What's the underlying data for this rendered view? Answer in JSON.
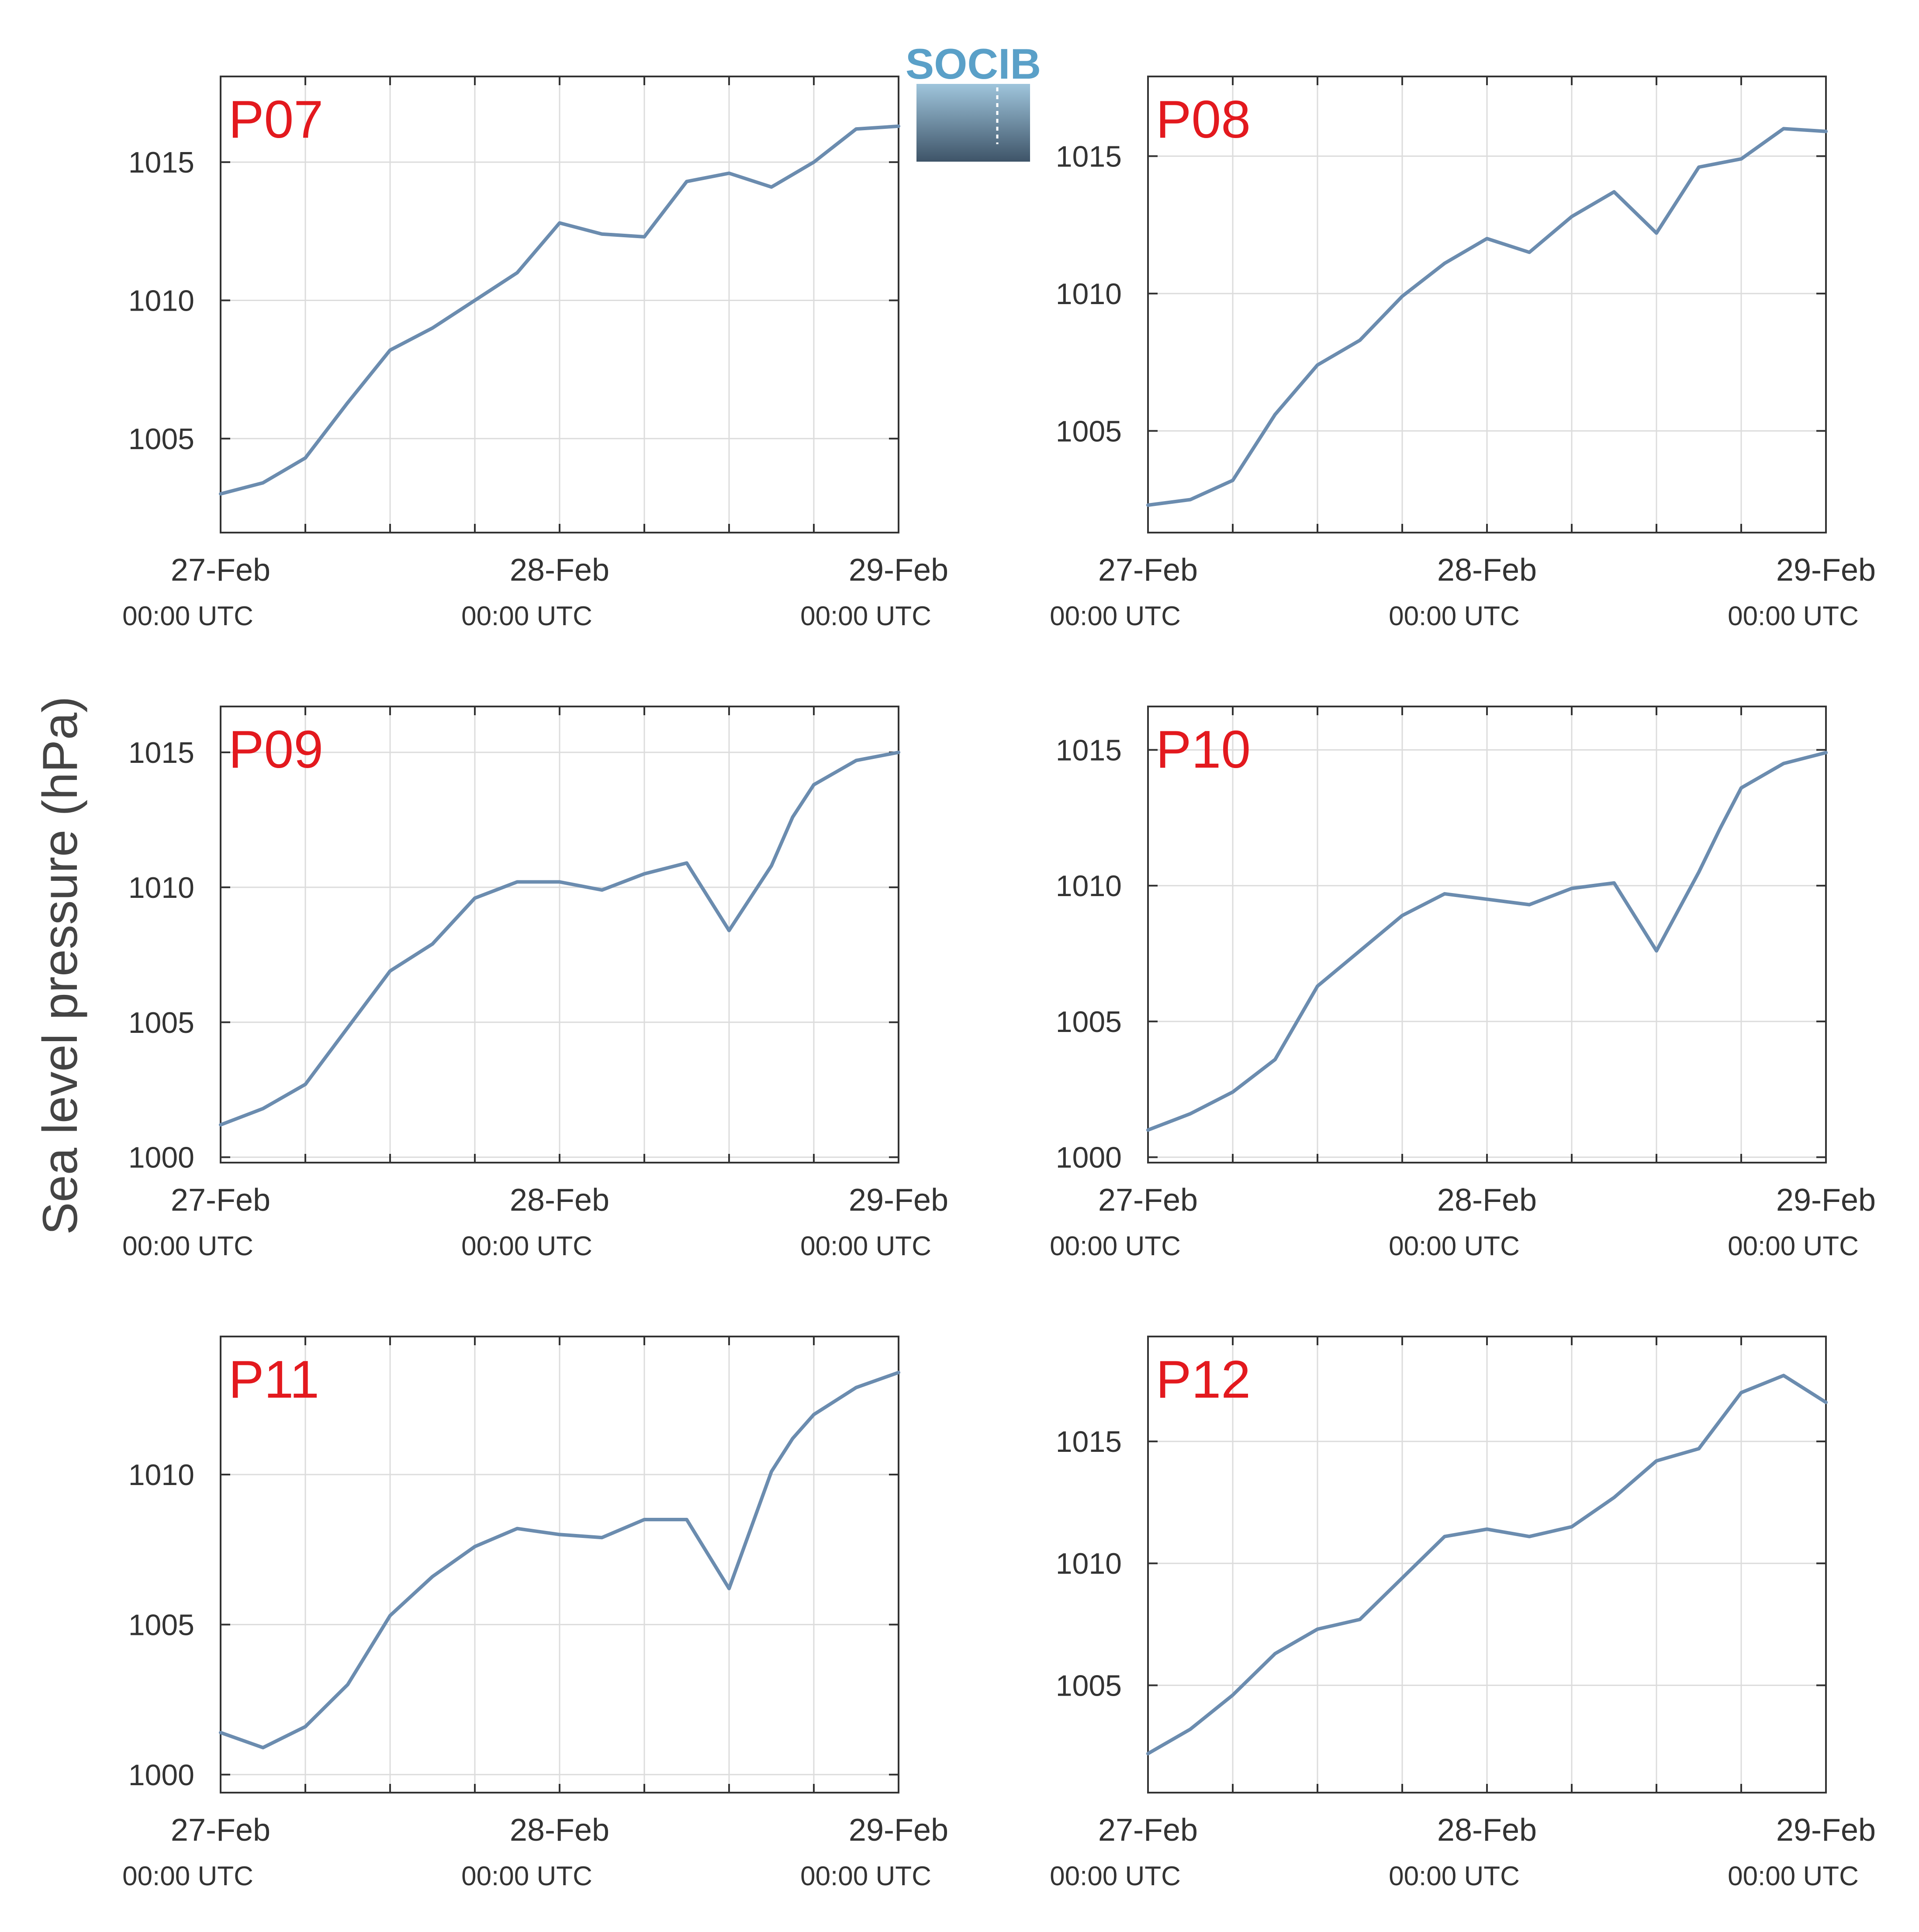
{
  "logo": {
    "text": "SOCIB"
  },
  "figure": {
    "ylabel": "Sea level pressure (hPa)"
  },
  "style": {
    "line_color": "#6b8caf",
    "label_color": "#e3191e",
    "grid_color": "#dcdcdc",
    "axis_color": "#333333",
    "logo_text_color": "#5aa0c8",
    "logo_gradient": [
      "#9fc5dc",
      "#3e5468"
    ]
  },
  "x_ticks": [
    {
      "day": 0,
      "date": "27-Feb",
      "time": "00:00 UTC"
    },
    {
      "day": 1,
      "date": "28-Feb",
      "time": "00:00 UTC"
    },
    {
      "day": 2,
      "date": "29-Feb",
      "time": "00:00 UTC"
    }
  ],
  "chart_data": [
    {
      "type": "line",
      "label": "P07",
      "grid": true,
      "xlim": [
        "27-Feb 00:00",
        "29-Feb 00:00"
      ],
      "ylim": [
        1001.6,
        1018.1
      ],
      "yticks": [
        1005,
        1010,
        1015
      ],
      "x": [
        "27-Feb 00:00",
        "27-Feb 03:00",
        "27-Feb 06:00",
        "27-Feb 09:00",
        "27-Feb 12:00",
        "27-Feb 15:00",
        "27-Feb 18:00",
        "27-Feb 21:00",
        "28-Feb 00:00",
        "28-Feb 03:00",
        "28-Feb 06:00",
        "28-Feb 09:00",
        "28-Feb 12:00",
        "28-Feb 15:00",
        "28-Feb 18:00",
        "28-Feb 21:00",
        "29-Feb 00:00"
      ],
      "values": [
        1003.0,
        1003.4,
        1004.3,
        1006.3,
        1008.2,
        1009.0,
        1010.0,
        1011.0,
        1012.8,
        1012.4,
        1012.3,
        1014.3,
        1014.6,
        1014.1,
        1015.0,
        1016.2,
        1016.3
      ]
    },
    {
      "type": "line",
      "label": "P08",
      "grid": true,
      "xlim": [
        "27-Feb 00:00",
        "29-Feb 00:00"
      ],
      "ylim": [
        1001.3,
        1017.9
      ],
      "yticks": [
        1005,
        1010,
        1015
      ],
      "x": [
        "27-Feb 00:00",
        "27-Feb 03:00",
        "27-Feb 06:00",
        "27-Feb 09:00",
        "27-Feb 12:00",
        "27-Feb 15:00",
        "27-Feb 18:00",
        "27-Feb 21:00",
        "28-Feb 00:00",
        "28-Feb 03:00",
        "28-Feb 06:00",
        "28-Feb 09:00",
        "28-Feb 12:00",
        "28-Feb 15:00",
        "28-Feb 18:00",
        "28-Feb 21:00",
        "29-Feb 00:00"
      ],
      "values": [
        1002.3,
        1002.5,
        1003.2,
        1005.6,
        1007.4,
        1008.3,
        1009.9,
        1011.1,
        1012.0,
        1011.5,
        1012.8,
        1013.7,
        1012.2,
        1014.6,
        1014.9,
        1016.0,
        1015.9
      ]
    },
    {
      "type": "line",
      "label": "P09",
      "grid": true,
      "xlim": [
        "27-Feb 00:00",
        "29-Feb 00:00"
      ],
      "ylim": [
        999.8,
        1016.7
      ],
      "yticks": [
        1000,
        1005,
        1010,
        1015
      ],
      "x": [
        "27-Feb 00:00",
        "27-Feb 03:00",
        "27-Feb 06:00",
        "27-Feb 09:00",
        "27-Feb 12:00",
        "27-Feb 15:00",
        "27-Feb 18:00",
        "27-Feb 21:00",
        "28-Feb 00:00",
        "28-Feb 03:00",
        "28-Feb 06:00",
        "28-Feb 09:00",
        "28-Feb 12:00",
        "28-Feb 15:00",
        "28-Feb 16:30",
        "28-Feb 18:00",
        "28-Feb 21:00",
        "29-Feb 00:00"
      ],
      "values": [
        1001.2,
        1001.8,
        1002.7,
        1004.8,
        1006.9,
        1007.9,
        1009.6,
        1010.2,
        1010.2,
        1009.9,
        1010.5,
        1010.9,
        1008.4,
        1010.8,
        1012.6,
        1013.8,
        1014.7,
        1015.0
      ]
    },
    {
      "type": "line",
      "label": "P10",
      "grid": true,
      "xlim": [
        "27-Feb 00:00",
        "29-Feb 00:00"
      ],
      "ylim": [
        999.8,
        1016.6
      ],
      "yticks": [
        1000,
        1005,
        1010,
        1015
      ],
      "x": [
        "27-Feb 00:00",
        "27-Feb 03:00",
        "27-Feb 06:00",
        "27-Feb 09:00",
        "27-Feb 12:00",
        "27-Feb 15:00",
        "27-Feb 18:00",
        "27-Feb 21:00",
        "28-Feb 00:00",
        "28-Feb 03:00",
        "28-Feb 06:00",
        "28-Feb 09:00",
        "28-Feb 12:00",
        "28-Feb 15:00",
        "28-Feb 16:30",
        "28-Feb 18:00",
        "28-Feb 21:00",
        "29-Feb 00:00"
      ],
      "values": [
        1001.0,
        1001.6,
        1002.4,
        1003.6,
        1006.3,
        1007.6,
        1008.9,
        1009.7,
        1009.5,
        1009.3,
        1009.9,
        1010.1,
        1007.6,
        1010.5,
        1012.1,
        1013.6,
        1014.5,
        1014.9
      ]
    },
    {
      "type": "line",
      "label": "P11",
      "grid": true,
      "xlim": [
        "27-Feb 00:00",
        "29-Feb 00:00"
      ],
      "ylim": [
        999.4,
        1014.6
      ],
      "yticks": [
        1000,
        1005,
        1010
      ],
      "x": [
        "27-Feb 00:00",
        "27-Feb 03:00",
        "27-Feb 06:00",
        "27-Feb 09:00",
        "27-Feb 12:00",
        "27-Feb 15:00",
        "27-Feb 18:00",
        "27-Feb 21:00",
        "28-Feb 00:00",
        "28-Feb 03:00",
        "28-Feb 06:00",
        "28-Feb 09:00",
        "28-Feb 12:00",
        "28-Feb 15:00",
        "28-Feb 16:30",
        "28-Feb 18:00",
        "28-Feb 21:00",
        "29-Feb 00:00"
      ],
      "values": [
        1001.4,
        1000.9,
        1001.6,
        1003.0,
        1005.3,
        1006.6,
        1007.6,
        1008.2,
        1008.0,
        1007.9,
        1008.5,
        1008.5,
        1006.2,
        1010.1,
        1011.2,
        1012.0,
        1012.9,
        1013.4
      ]
    },
    {
      "type": "line",
      "label": "P12",
      "grid": true,
      "xlim": [
        "27-Feb 00:00",
        "29-Feb 00:00"
      ],
      "ylim": [
        1000.6,
        1019.3
      ],
      "yticks": [
        1005,
        1010,
        1015
      ],
      "x": [
        "27-Feb 00:00",
        "27-Feb 03:00",
        "27-Feb 06:00",
        "27-Feb 09:00",
        "27-Feb 12:00",
        "27-Feb 15:00",
        "27-Feb 18:00",
        "27-Feb 21:00",
        "28-Feb 00:00",
        "28-Feb 03:00",
        "28-Feb 06:00",
        "28-Feb 09:00",
        "28-Feb 12:00",
        "28-Feb 15:00",
        "28-Feb 18:00",
        "28-Feb 21:00",
        "29-Feb 00:00"
      ],
      "values": [
        1002.2,
        1003.2,
        1004.6,
        1006.3,
        1007.3,
        1007.7,
        1009.4,
        1011.1,
        1011.4,
        1011.1,
        1011.5,
        1012.7,
        1014.2,
        1014.7,
        1017.0,
        1017.7,
        1016.6
      ]
    }
  ]
}
